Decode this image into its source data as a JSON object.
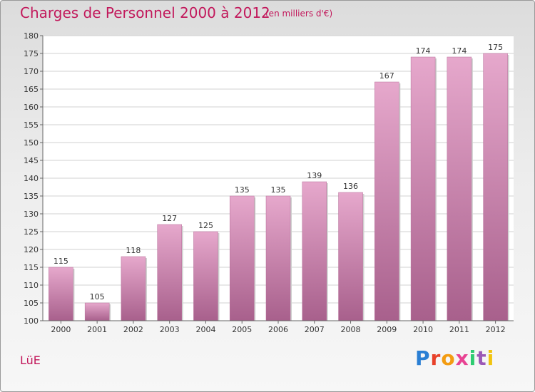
{
  "title": "Charges de Personnel 2000 à 2012",
  "subtitle": "(en milliers d'€)",
  "commune": "LüE",
  "logo": {
    "text": "Proxiti",
    "colors": [
      "#2a7fd4",
      "#e8412a",
      "#f39c12",
      "#e84393",
      "#2ecc71",
      "#9b59b6",
      "#f1c40f"
    ]
  },
  "colors": {
    "title": "#c2185b",
    "bar_top": "#e6a8cc",
    "bar_bottom": "#a8608c",
    "bar_edge": "#b56d98"
  },
  "chart_data": {
    "type": "bar",
    "title": "Charges de Personnel 2000 à 2012",
    "subtitle": "(en milliers d'€)",
    "categories": [
      "2000",
      "2001",
      "2002",
      "2003",
      "2004",
      "2005",
      "2006",
      "2007",
      "2008",
      "2009",
      "2010",
      "2011",
      "2012"
    ],
    "values": [
      115,
      105,
      118,
      127,
      125,
      135,
      135,
      139,
      136,
      167,
      174,
      174,
      175
    ],
    "ylim": [
      100,
      180
    ],
    "yticks": [
      100,
      105,
      110,
      115,
      120,
      125,
      130,
      135,
      140,
      145,
      150,
      155,
      160,
      165,
      170,
      175,
      180
    ],
    "grid": true,
    "xlabel": "",
    "ylabel": ""
  }
}
